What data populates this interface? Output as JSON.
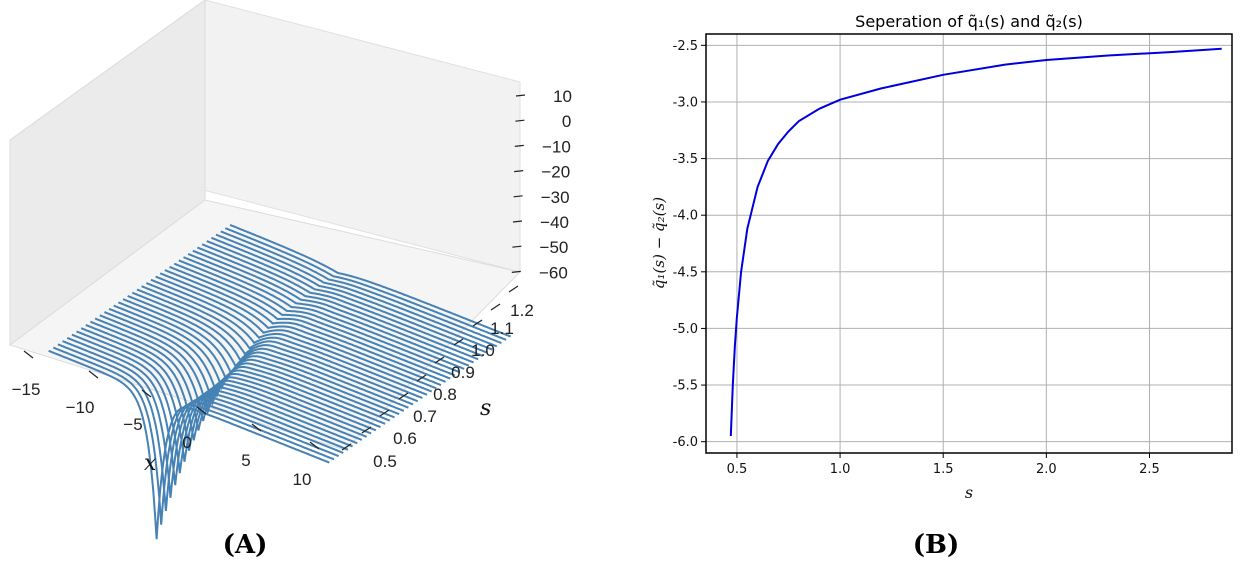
{
  "panels": {
    "a_tag": "(A)",
    "b_tag": "(B)"
  },
  "chart_data": [
    {
      "type": "line",
      "panel": "A",
      "subtype": "3d-waterfall",
      "xlabel": "x",
      "ylabel": "s",
      "zlabel": "",
      "x_ticks": [
        "−15",
        "−10",
        "−5",
        "0",
        "5",
        "10"
      ],
      "s_ticks": [
        "0.5",
        "0.6",
        "0.7",
        "0.8",
        "0.9",
        "1.0",
        "1.1",
        "1.2"
      ],
      "z_ticks": [
        "10",
        "0",
        "−10",
        "−20",
        "−30",
        "−40",
        "−50",
        "−60"
      ],
      "xlim": [
        -17,
        11
      ],
      "slim": [
        0.45,
        1.25
      ],
      "zlim": [
        -60,
        15
      ],
      "curve_count": 40,
      "color": "#4682b4"
    },
    {
      "type": "line",
      "panel": "B",
      "title": "Seperation of q̃₁(s) and  q̃₂(s)",
      "xlabel": "s",
      "ylabel": "q̃₁(s) − q̃₂(s)",
      "xlim": [
        0.35,
        2.9
      ],
      "ylim": [
        -6.1,
        -2.4
      ],
      "x_ticks": [
        "0.5",
        "1.0",
        "1.5",
        "2.0",
        "2.5"
      ],
      "y_ticks": [
        "-2.5",
        "-3.0",
        "-3.5",
        "-4.0",
        "-4.5",
        "-5.0",
        "-5.5",
        "-6.0"
      ],
      "grid": true,
      "color": "#0000dd",
      "series": [
        {
          "x": [
            0.47,
            0.48,
            0.49,
            0.5,
            0.52,
            0.55,
            0.6,
            0.65,
            0.7,
            0.75,
            0.8,
            0.9,
            1.0,
            1.2,
            1.5,
            1.8,
            2.0,
            2.3,
            2.6,
            2.85
          ],
          "y": [
            -5.95,
            -5.5,
            -5.15,
            -4.9,
            -4.5,
            -4.12,
            -3.75,
            -3.52,
            -3.37,
            -3.26,
            -3.17,
            -3.06,
            -2.98,
            -2.88,
            -2.76,
            -2.67,
            -2.63,
            -2.59,
            -2.56,
            -2.53
          ]
        }
      ]
    }
  ]
}
